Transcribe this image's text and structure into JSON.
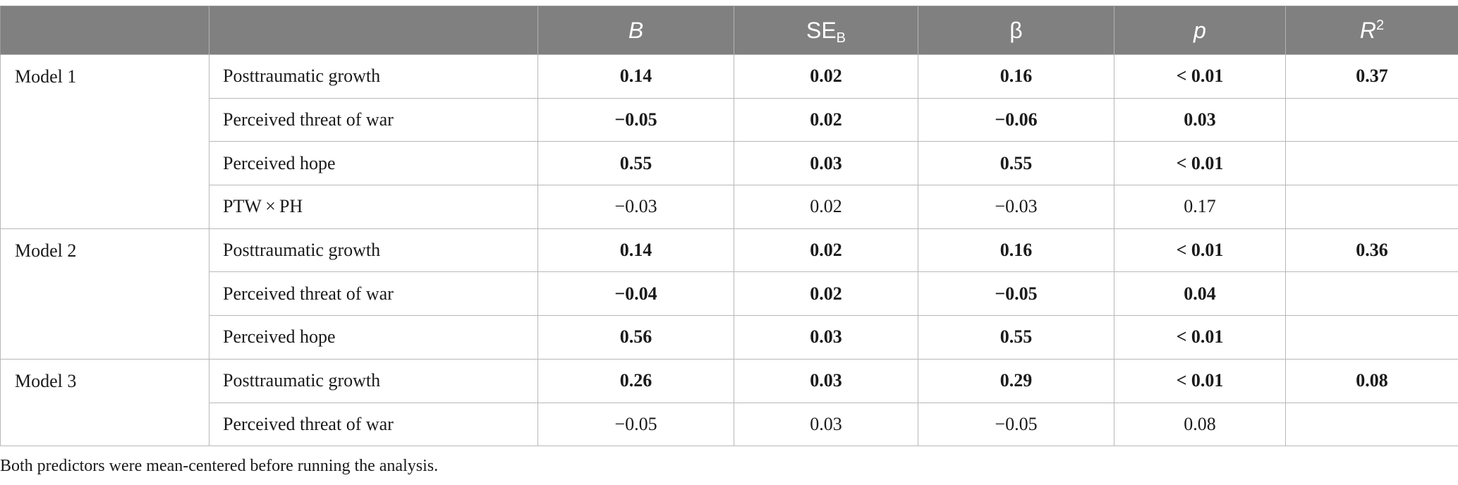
{
  "table": {
    "headers": {
      "col0": "",
      "col1": "",
      "B": "B",
      "SE_base": "SE",
      "SE_sub": "B",
      "beta": "β",
      "p": "p",
      "R_base": "R",
      "R_sup": "2"
    },
    "models": [
      {
        "label": "Model 1",
        "rows": [
          {
            "predictor": "Posttraumatic growth",
            "B": "0.14",
            "SE": "0.02",
            "beta": "0.16",
            "p": "< 0.01",
            "R2": "0.37"
          },
          {
            "predictor": "Perceived threat of war",
            "B": "−0.05",
            "SE": "0.02",
            "beta": "−0.06",
            "p": "0.03",
            "R2": ""
          },
          {
            "predictor": "Perceived hope",
            "B": "0.55",
            "SE": "0.03",
            "beta": "0.55",
            "p": "< 0.01",
            "R2": ""
          },
          {
            "predictor": "PTW × PH",
            "B": "−0.03",
            "SE": "0.02",
            "beta": "−0.03",
            "p": "0.17",
            "R2": ""
          }
        ]
      },
      {
        "label": "Model 2",
        "rows": [
          {
            "predictor": "Posttraumatic growth",
            "B": "0.14",
            "SE": "0.02",
            "beta": "0.16",
            "p": "< 0.01",
            "R2": "0.36"
          },
          {
            "predictor": "Perceived threat of war",
            "B": "−0.04",
            "SE": "0.02",
            "beta": "−0.05",
            "p": "0.04",
            "R2": ""
          },
          {
            "predictor": "Perceived hope",
            "B": "0.56",
            "SE": "0.03",
            "beta": "0.55",
            "p": "< 0.01",
            "R2": ""
          }
        ]
      },
      {
        "label": "Model 3",
        "rows": [
          {
            "predictor": "Posttraumatic growth",
            "B": "0.26",
            "SE": "0.03",
            "beta": "0.29",
            "p": "< 0.01",
            "R2": "0.08"
          },
          {
            "predictor": "Perceived threat of war",
            "B": "−0.05",
            "SE": "0.03",
            "beta": "−0.05",
            "p": "0.08",
            "R2": ""
          }
        ]
      }
    ]
  },
  "footnote": "Both predictors were mean-centered before running the analysis.",
  "colors": {
    "header_bg": "#808080",
    "header_text": "#ffffff",
    "grid": "#b8b8b8",
    "text": "#1a1a1a"
  }
}
